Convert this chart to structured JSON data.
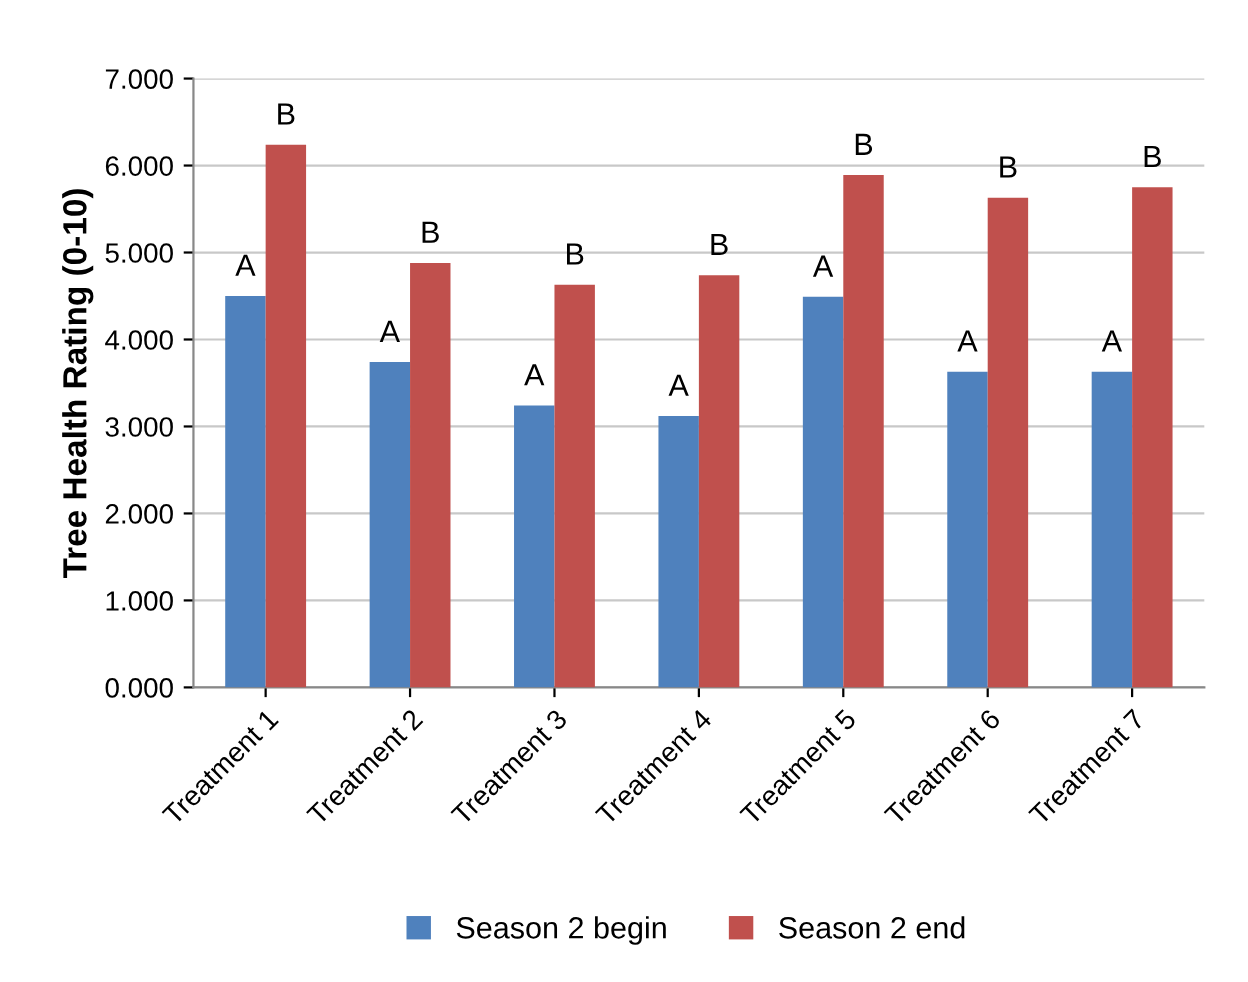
{
  "chart_data": {
    "type": "bar",
    "ylabel": "Tree Health Rating (0-10)",
    "categories": [
      "Treatment 1",
      "Treatment 2",
      "Treatment 3",
      "Treatment 4",
      "Treatment 5",
      "Treatment 6",
      "Treatment 7"
    ],
    "series": [
      {
        "name": "Season 2 begin",
        "color": "#4f81bd",
        "values": [
          4.5,
          3.74,
          3.24,
          3.12,
          4.49,
          3.63,
          3.63
        ],
        "value_labels": [
          "A",
          "A",
          "A",
          "A",
          "A",
          "A",
          "A"
        ]
      },
      {
        "name": "Season 2 end",
        "color": "#c0504d",
        "values": [
          6.24,
          4.88,
          4.63,
          4.74,
          5.89,
          5.63,
          5.75
        ],
        "value_labels": [
          "B",
          "B",
          "B",
          "B",
          "B",
          "B",
          "B"
        ]
      }
    ],
    "ylim": [
      0,
      7
    ],
    "yticks": [
      {
        "value": 0,
        "label": "0.000"
      },
      {
        "value": 1,
        "label": "1.000"
      },
      {
        "value": 2,
        "label": "2.000"
      },
      {
        "value": 3,
        "label": "3.000"
      },
      {
        "value": 4,
        "label": "4.000"
      },
      {
        "value": 5,
        "label": "5.000"
      },
      {
        "value": 6,
        "label": "6.000"
      },
      {
        "value": 7,
        "label": "7.000"
      }
    ],
    "grid": "y",
    "legend": "bottom"
  }
}
